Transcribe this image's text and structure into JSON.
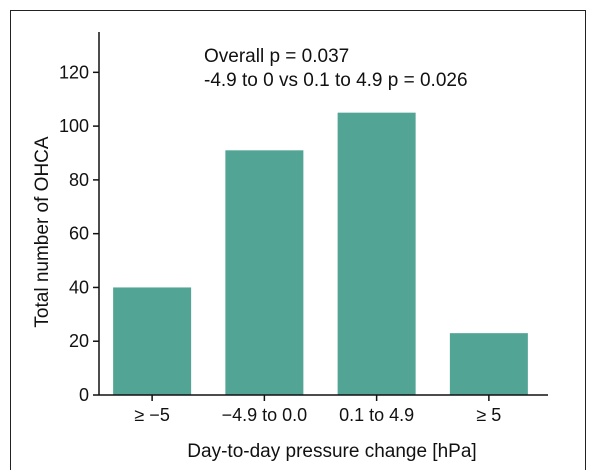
{
  "chart_data": {
    "type": "bar",
    "categories": [
      "≥ −5",
      "−4.9 to 0.0",
      "0.1 to 4.9",
      "≥ 5"
    ],
    "values": [
      40,
      91,
      105,
      23
    ],
    "title": "",
    "xlabel": "Day-to-day pressure change [hPa]",
    "ylabel": "Total number of OHCA",
    "ylim": [
      0,
      135
    ],
    "yticks": [
      0,
      20,
      40,
      60,
      80,
      100,
      120
    ],
    "grid": false,
    "bar_color": "#52a595",
    "annotations": [
      "Overall p = 0.037",
      "-4.9 to 0 vs 0.1 to 4.9 p = 0.026"
    ]
  }
}
